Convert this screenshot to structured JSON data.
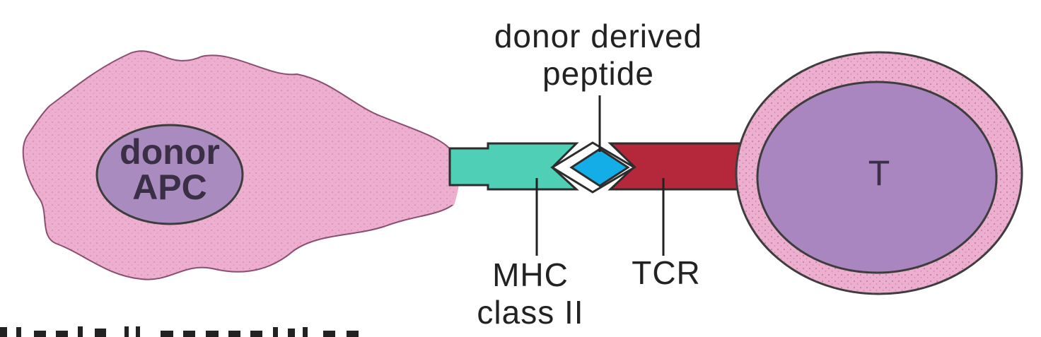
{
  "labels": {
    "peptide_line1": "donor derived",
    "peptide_line2": "peptide",
    "apc_line1": "donor",
    "apc_line2": "APC",
    "mhc_line1": "MHC",
    "mhc_line2": "class II",
    "tcr": "TCR",
    "t_cell": "T"
  },
  "colors": {
    "apc_cell": "#eeaed0",
    "apc_nucleus": "#a98bc0",
    "mhc": "#4fcfb5",
    "peptide": "#13aee8",
    "tcr": "#b5283c",
    "t_cell_outer": "#eeaed0",
    "t_cell_inner": "#aa86c1",
    "outline": "#3d3d3d"
  }
}
